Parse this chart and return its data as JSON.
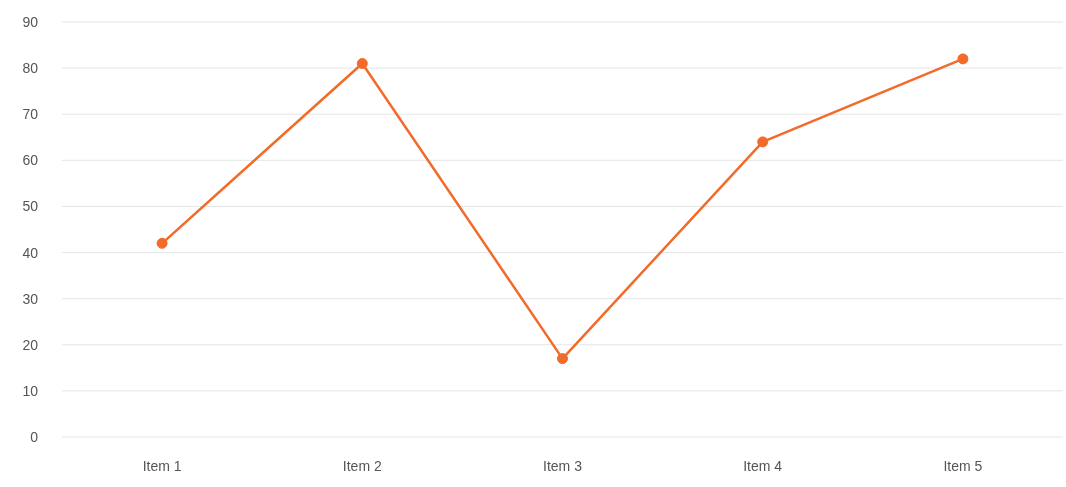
{
  "chart_data": {
    "type": "line",
    "categories": [
      "Item 1",
      "Item 2",
      "Item 3",
      "Item 4",
      "Item 5"
    ],
    "series": [
      {
        "color": "#f26b2a",
        "values": [
          42,
          81,
          17,
          64,
          82
        ]
      }
    ],
    "ylim": [
      0,
      90
    ],
    "yticks": [
      0,
      10,
      20,
      30,
      40,
      50,
      60,
      70,
      80,
      90
    ],
    "grid": "y",
    "legend": false,
    "marker": "circle",
    "line_style": "solid"
  }
}
